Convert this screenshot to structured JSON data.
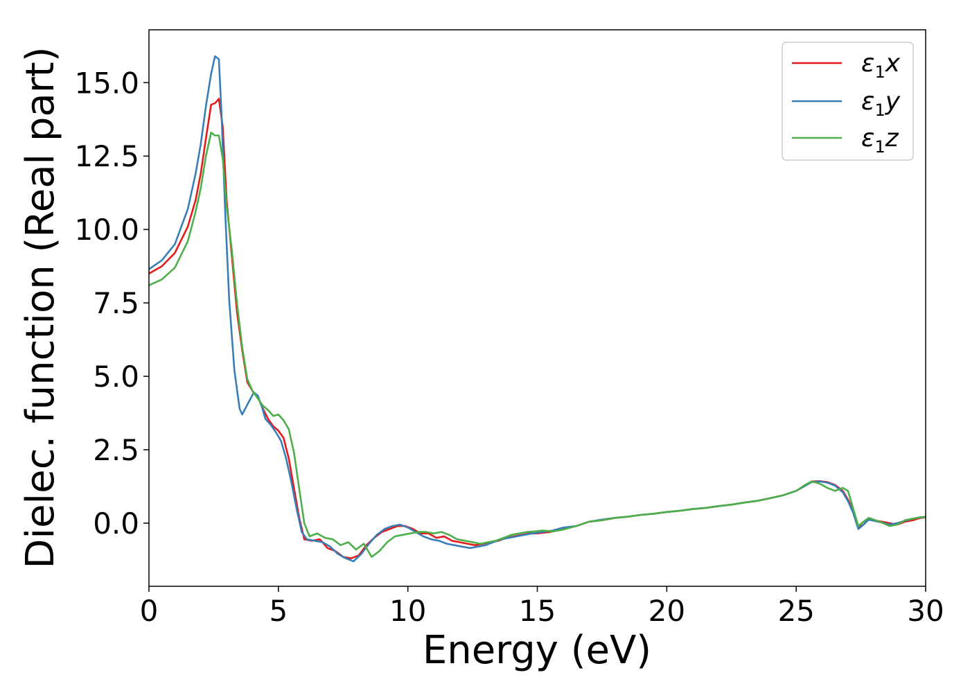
{
  "chart_data": {
    "type": "line",
    "xlabel": "Energy (eV)",
    "ylabel": "Dielec. function (Real part)",
    "xlim": [
      0,
      30
    ],
    "ylim": [
      -2.15,
      16.8
    ],
    "xticks": [
      0,
      5,
      10,
      15,
      20,
      25,
      30
    ],
    "xtick_labels": [
      "0",
      "5",
      "10",
      "15",
      "20",
      "25",
      "30"
    ],
    "yticks": [
      0.0,
      2.5,
      5.0,
      7.5,
      10.0,
      12.5,
      15.0
    ],
    "ytick_labels": [
      "0.0",
      "2.5",
      "5.0",
      "7.5",
      "10.0",
      "12.5",
      "15.0"
    ],
    "grid": false,
    "legend_position": "top-right",
    "series": [
      {
        "name": "ε₁x",
        "legend_main": "ε",
        "legend_sub": "1",
        "legend_tail": "x",
        "color": "#e41a1c",
        "x": [
          0,
          0.5,
          1.0,
          1.5,
          1.8,
          2.0,
          2.2,
          2.4,
          2.55,
          2.7,
          2.85,
          3.0,
          3.2,
          3.4,
          3.6,
          3.8,
          4.0,
          4.2,
          4.4,
          4.6,
          4.8,
          5.0,
          5.2,
          5.4,
          5.6,
          5.8,
          6.0,
          6.3,
          6.6,
          6.9,
          7.2,
          7.5,
          7.8,
          8.1,
          8.4,
          8.7,
          9.0,
          9.3,
          9.6,
          9.9,
          10.2,
          10.5,
          10.8,
          11.1,
          11.4,
          11.7,
          12.0,
          12.3,
          12.6,
          12.9,
          13.2,
          13.5,
          13.8,
          14.1,
          14.4,
          14.7,
          15.0,
          15.5,
          16.0,
          16.5,
          17.0,
          17.5,
          18.0,
          18.5,
          19.0,
          19.5,
          20.0,
          20.5,
          21.0,
          21.5,
          22.0,
          22.5,
          23.0,
          23.5,
          24.0,
          24.5,
          25.0,
          25.3,
          25.6,
          25.9,
          26.2,
          26.5,
          26.8,
          27.0,
          27.2,
          27.4,
          27.6,
          27.8,
          28.0,
          28.3,
          28.6,
          28.9,
          29.2,
          29.5,
          29.8,
          30.0
        ],
        "y": [
          8.5,
          8.75,
          9.2,
          10.1,
          11.0,
          11.9,
          13.1,
          14.25,
          14.3,
          14.45,
          13.5,
          11.0,
          9.1,
          7.2,
          5.9,
          4.8,
          4.5,
          4.3,
          3.9,
          3.55,
          3.3,
          3.15,
          2.9,
          2.2,
          1.2,
          0.2,
          -0.55,
          -0.6,
          -0.55,
          -0.85,
          -0.95,
          -1.15,
          -1.2,
          -1.1,
          -0.75,
          -0.5,
          -0.3,
          -0.2,
          -0.1,
          -0.1,
          -0.2,
          -0.35,
          -0.35,
          -0.5,
          -0.45,
          -0.6,
          -0.65,
          -0.7,
          -0.75,
          -0.7,
          -0.65,
          -0.6,
          -0.5,
          -0.45,
          -0.4,
          -0.35,
          -0.35,
          -0.3,
          -0.2,
          -0.1,
          0.05,
          0.1,
          0.18,
          0.22,
          0.28,
          0.32,
          0.38,
          0.42,
          0.48,
          0.52,
          0.58,
          0.63,
          0.7,
          0.76,
          0.85,
          0.95,
          1.1,
          1.25,
          1.42,
          1.43,
          1.4,
          1.3,
          1.1,
          0.8,
          0.45,
          -0.15,
          -0.05,
          0.15,
          0.1,
          0.05,
          0.0,
          -0.05,
          0.05,
          0.1,
          0.18,
          0.2
        ]
      },
      {
        "name": "ε₁y",
        "legend_main": "ε",
        "legend_sub": "1",
        "legend_tail": "y",
        "color": "#377eb8",
        "x": [
          0,
          0.5,
          1.0,
          1.5,
          1.8,
          2.0,
          2.2,
          2.4,
          2.55,
          2.7,
          2.8,
          2.95,
          3.1,
          3.3,
          3.5,
          3.6,
          3.75,
          3.9,
          4.05,
          4.2,
          4.35,
          4.5,
          4.7,
          4.9,
          5.1,
          5.3,
          5.5,
          5.7,
          5.9,
          6.1,
          6.4,
          6.7,
          7.0,
          7.3,
          7.6,
          7.9,
          8.2,
          8.5,
          8.8,
          9.1,
          9.4,
          9.7,
          10.0,
          10.3,
          10.6,
          10.9,
          11.2,
          11.5,
          11.8,
          12.1,
          12.4,
          12.7,
          13.0,
          13.3,
          13.6,
          13.9,
          14.2,
          14.5,
          14.8,
          15.2,
          15.6,
          16.0,
          16.5,
          17.0,
          17.5,
          18.0,
          18.5,
          19.0,
          19.5,
          20.0,
          20.5,
          21.0,
          21.5,
          22.0,
          22.5,
          23.0,
          23.5,
          24.0,
          24.5,
          25.0,
          25.3,
          25.6,
          25.9,
          26.2,
          26.5,
          26.8,
          27.0,
          27.2,
          27.4,
          27.6,
          27.8,
          28.0,
          28.3,
          28.6,
          28.9,
          29.2,
          29.5,
          29.8,
          30.0
        ],
        "y": [
          8.65,
          8.95,
          9.5,
          10.7,
          11.9,
          12.9,
          14.2,
          15.3,
          15.9,
          15.8,
          14.0,
          10.5,
          7.6,
          5.2,
          3.9,
          3.7,
          3.95,
          4.2,
          4.45,
          4.35,
          4.0,
          3.55,
          3.35,
          3.1,
          2.8,
          2.2,
          1.4,
          0.5,
          -0.3,
          -0.55,
          -0.6,
          -0.65,
          -0.8,
          -1.05,
          -1.2,
          -1.3,
          -1.05,
          -0.7,
          -0.4,
          -0.2,
          -0.1,
          -0.05,
          -0.15,
          -0.3,
          -0.45,
          -0.55,
          -0.6,
          -0.7,
          -0.75,
          -0.8,
          -0.85,
          -0.8,
          -0.75,
          -0.65,
          -0.55,
          -0.5,
          -0.45,
          -0.4,
          -0.35,
          -0.3,
          -0.25,
          -0.15,
          -0.1,
          0.05,
          0.12,
          0.18,
          0.22,
          0.28,
          0.32,
          0.38,
          0.42,
          0.48,
          0.52,
          0.58,
          0.63,
          0.7,
          0.76,
          0.85,
          0.95,
          1.1,
          1.25,
          1.4,
          1.42,
          1.38,
          1.28,
          1.05,
          0.75,
          0.35,
          -0.2,
          -0.05,
          0.12,
          0.08,
          0.02,
          -0.05,
          0.0,
          0.08,
          0.15,
          0.2,
          0.2
        ]
      },
      {
        "name": "ε₁z",
        "legend_main": "ε",
        "legend_sub": "1",
        "legend_tail": "z",
        "color": "#4daf4a",
        "x": [
          0,
          0.5,
          1.0,
          1.5,
          1.8,
          2.0,
          2.2,
          2.4,
          2.55,
          2.7,
          2.85,
          3.0,
          3.2,
          3.4,
          3.6,
          3.8,
          4.0,
          4.2,
          4.4,
          4.6,
          4.8,
          5.0,
          5.2,
          5.4,
          5.6,
          5.8,
          6.0,
          6.2,
          6.5,
          6.8,
          7.1,
          7.4,
          7.7,
          8.0,
          8.3,
          8.6,
          8.9,
          9.2,
          9.5,
          9.8,
          10.1,
          10.4,
          10.7,
          11.0,
          11.3,
          11.6,
          11.9,
          12.2,
          12.5,
          12.8,
          13.1,
          13.4,
          13.7,
          14.0,
          14.3,
          14.6,
          14.9,
          15.2,
          15.6,
          16.0,
          16.5,
          17.0,
          17.5,
          18.0,
          18.5,
          19.0,
          19.5,
          20.0,
          20.5,
          21.0,
          21.5,
          22.0,
          22.5,
          23.0,
          23.5,
          24.0,
          24.5,
          25.0,
          25.3,
          25.6,
          25.9,
          26.2,
          26.5,
          26.8,
          27.0,
          27.2,
          27.4,
          27.6,
          27.8,
          28.0,
          28.3,
          28.6,
          28.9,
          29.2,
          29.5,
          29.8,
          30.0
        ],
        "y": [
          8.1,
          8.3,
          8.7,
          9.6,
          10.6,
          11.4,
          12.5,
          13.3,
          13.2,
          13.2,
          12.4,
          10.8,
          9.3,
          7.5,
          6.0,
          4.9,
          4.5,
          4.25,
          4.0,
          3.85,
          3.65,
          3.7,
          3.5,
          3.2,
          2.4,
          1.2,
          0.0,
          -0.45,
          -0.35,
          -0.5,
          -0.55,
          -0.75,
          -0.65,
          -0.9,
          -0.7,
          -1.15,
          -0.95,
          -0.65,
          -0.45,
          -0.4,
          -0.35,
          -0.3,
          -0.3,
          -0.35,
          -0.3,
          -0.4,
          -0.55,
          -0.6,
          -0.65,
          -0.7,
          -0.65,
          -0.6,
          -0.5,
          -0.4,
          -0.35,
          -0.3,
          -0.28,
          -0.25,
          -0.28,
          -0.22,
          -0.1,
          0.05,
          0.1,
          0.18,
          0.22,
          0.28,
          0.32,
          0.38,
          0.42,
          0.48,
          0.52,
          0.58,
          0.63,
          0.7,
          0.76,
          0.85,
          0.95,
          1.1,
          1.28,
          1.42,
          1.35,
          1.2,
          1.1,
          1.2,
          1.1,
          0.5,
          -0.1,
          0.05,
          0.18,
          0.12,
          0.02,
          -0.1,
          -0.05,
          0.1,
          0.15,
          0.2,
          0.22
        ]
      }
    ]
  }
}
